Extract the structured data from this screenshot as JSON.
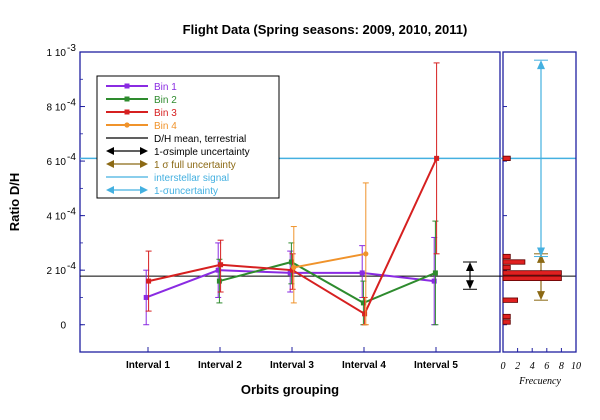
{
  "chart_data": {
    "type": "line",
    "title": "Flight Data (Spring seasons: 2009, 2010, 2011)",
    "xlabel": "Orbits grouping",
    "ylabel": "Ratio D/H",
    "categories": [
      "Interval 1",
      "Interval 2",
      "Interval 3",
      "Interval 4",
      "Interval 5"
    ],
    "ylim": [
      -0.0001,
      0.001
    ],
    "yticks": [
      0,
      0.0002,
      0.0004,
      0.0006,
      0.0008,
      0.001
    ],
    "ytick_labels": [
      {
        "mantissa": "0",
        "exp": ""
      },
      {
        "mantissa": "2 10",
        "exp": "-4"
      },
      {
        "mantissa": "4 10",
        "exp": "-4"
      },
      {
        "mantissa": "6 10",
        "exp": "-4"
      },
      {
        "mantissa": "8 10",
        "exp": "-4"
      },
      {
        "mantissa": "1 10",
        "exp": "-3"
      }
    ],
    "series": [
      {
        "name": "Bin 1",
        "color": "#8a2be2",
        "marker": "square",
        "points": [
          {
            "x": 1,
            "y": 0.0001,
            "lo": 0.0,
            "hi": 0.0002
          },
          {
            "x": 2,
            "y": 0.0002,
            "lo": 0.0001,
            "hi": 0.0003
          },
          {
            "x": 3,
            "y": 0.00019,
            "lo": 0.00012,
            "hi": 0.00027
          },
          {
            "x": 4,
            "y": 0.00019,
            "lo": 0.0001,
            "hi": 0.00029
          },
          {
            "x": 5,
            "y": 0.00016,
            "lo": 0.0,
            "hi": 0.00032
          }
        ]
      },
      {
        "name": "Bin 2",
        "color": "#2e8b2e",
        "marker": "square",
        "points": [
          {
            "x": 2,
            "y": 0.00016,
            "lo": 8e-05,
            "hi": 0.00024
          },
          {
            "x": 3,
            "y": 0.00023,
            "lo": 0.00015,
            "hi": 0.0003
          },
          {
            "x": 4,
            "y": 8e-05,
            "lo": 0.0,
            "hi": 0.00016
          },
          {
            "x": 5,
            "y": 0.00019,
            "lo": 0.0,
            "hi": 0.00038
          }
        ]
      },
      {
        "name": "Bin 3",
        "color": "#d62020",
        "marker": "square",
        "points": [
          {
            "x": 1,
            "y": 0.00016,
            "lo": 5e-05,
            "hi": 0.00027
          },
          {
            "x": 2,
            "y": 0.00022,
            "lo": 0.00012,
            "hi": 0.00031
          },
          {
            "x": 3,
            "y": 0.0002,
            "lo": 0.00013,
            "hi": 0.00026
          },
          {
            "x": 4,
            "y": 4e-05,
            "lo": 0.0,
            "hi": 0.0001
          },
          {
            "x": 5,
            "y": 0.00061,
            "lo": 0.00026,
            "hi": 0.00096
          }
        ]
      },
      {
        "name": "Bin 4",
        "color": "#f0932b",
        "marker": "circle",
        "points": [
          {
            "x": 3,
            "y": 0.00021,
            "lo": 8e-05,
            "hi": 0.00036
          },
          {
            "x": 4,
            "y": 0.00026,
            "lo": 0.0,
            "hi": 0.00052
          }
        ]
      }
    ],
    "reference_lines": [
      {
        "name": "D/H mean, terrestrial",
        "y": 0.000178,
        "color": "#000000"
      },
      {
        "name": "interstellar signal",
        "y": 0.00061,
        "color": "#44b0e0"
      }
    ],
    "uncertainty_arrows": [
      {
        "name": "1-σ simple uncertainty",
        "color": "#000000",
        "lo": 0.00013,
        "hi": 0.00023
      },
      {
        "name": "1 σ full uncertainty",
        "color": "#8b6914",
        "lo": 9e-05,
        "hi": 0.00026
      },
      {
        "name": "1-σ uncertainty",
        "color": "#44b0e0",
        "lo": 0.00025,
        "hi": 0.00097
      }
    ],
    "legend": {
      "placement": "top-left",
      "entries": [
        {
          "label": "Bin 1",
          "color": "#8a2be2",
          "kind": "line-square"
        },
        {
          "label": "Bin 2",
          "color": "#2e8b2e",
          "kind": "line-square"
        },
        {
          "label": "Bin 3",
          "color": "#d62020",
          "kind": "line-square"
        },
        {
          "label": "Bin 4",
          "color": "#f0932b",
          "kind": "line-circle"
        },
        {
          "label": "D/H mean, terrestrial",
          "color": "#000000",
          "kind": "line"
        },
        {
          "label": "1-σsimple uncertainty",
          "color": "#000000",
          "kind": "arrow"
        },
        {
          "label": "1 σ full uncertainty",
          "color": "#8b6914",
          "kind": "arrow"
        },
        {
          "label": "interstellar signal",
          "color": "#44b0e0",
          "kind": "line"
        },
        {
          "label": "1-σuncertainty",
          "color": "#44b0e0",
          "kind": "arrow"
        }
      ]
    },
    "histogram": {
      "xlabel": "Frecuency",
      "xlim": [
        0,
        10
      ],
      "xticks": [
        0,
        2,
        4,
        6,
        8,
        10
      ],
      "bin_width": 2e-05,
      "bins": [
        {
          "y": 0.0,
          "count": 1
        },
        {
          "y": 2e-05,
          "count": 1
        },
        {
          "y": 4e-05,
          "count": 0
        },
        {
          "y": 8e-05,
          "count": 2
        },
        {
          "y": 0.00016,
          "count": 8
        },
        {
          "y": 0.00018,
          "count": 8
        },
        {
          "y": 0.0002,
          "count": 1
        },
        {
          "y": 0.00022,
          "count": 3
        },
        {
          "y": 0.00024,
          "count": 1
        },
        {
          "y": 0.0006,
          "count": 1
        }
      ]
    }
  }
}
